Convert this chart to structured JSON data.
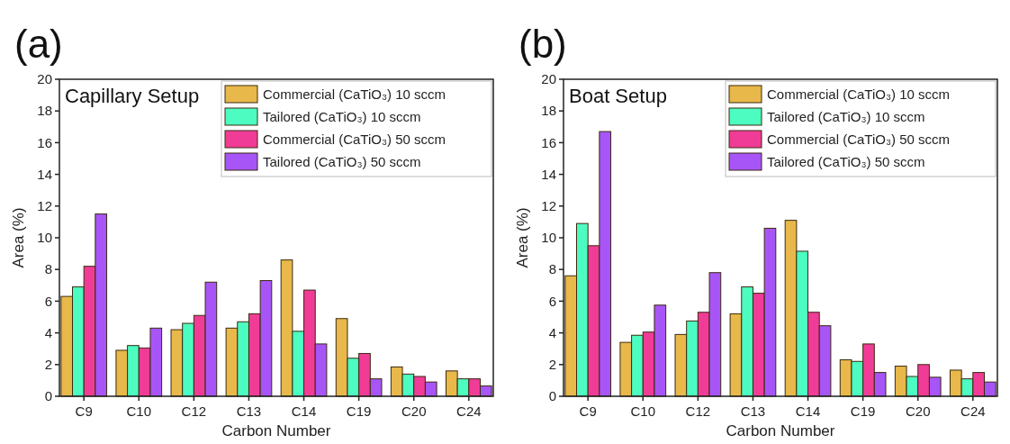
{
  "chart_data": [
    {
      "type": "bar",
      "title": "(a)",
      "subtitle": "Capillary Setup",
      "xlabel": "Carbon Number",
      "ylabel": "Area (%)",
      "categories": [
        "C9",
        "C10",
        "C12",
        "C13",
        "C14",
        "C19",
        "C20",
        "C24"
      ],
      "series": [
        {
          "name": "Commercial (CaTiO₃) 10 sccm",
          "color": "#e8b84a",
          "values": [
            6.3,
            2.9,
            4.2,
            4.3,
            8.6,
            4.9,
            1.85,
            1.6
          ]
        },
        {
          "name": "Tailored (CaTiO₃) 10 sccm",
          "color": "#4dfcc0",
          "values": [
            6.9,
            3.2,
            4.6,
            4.7,
            4.1,
            2.4,
            1.4,
            1.1
          ]
        },
        {
          "name": "Commercial (CaTiO₃) 50 sccm",
          "color": "#f03c96",
          "values": [
            8.2,
            3.05,
            5.1,
            5.2,
            6.7,
            2.7,
            1.25,
            1.1
          ]
        },
        {
          "name": "Tailored (CaTiO₃) 50 sccm",
          "color": "#a855f7",
          "values": [
            11.5,
            4.3,
            7.2,
            7.3,
            3.3,
            1.1,
            0.9,
            0.65
          ]
        }
      ],
      "ylim": [
        0,
        20
      ],
      "yticks": [
        0,
        2,
        4,
        6,
        8,
        10,
        12,
        14,
        16,
        18,
        20
      ],
      "grid": false,
      "legend": "top right"
    },
    {
      "type": "bar",
      "title": "(b)",
      "subtitle": "Boat Setup",
      "xlabel": "Carbon Number",
      "ylabel": "Area (%)",
      "categories": [
        "C9",
        "C10",
        "C12",
        "C13",
        "C14",
        "C19",
        "C20",
        "C24"
      ],
      "series": [
        {
          "name": "Commercial (CaTiO₃) 10 sccm",
          "color": "#e8b84a",
          "values": [
            7.6,
            3.4,
            3.9,
            5.2,
            11.1,
            2.3,
            1.9,
            1.65
          ]
        },
        {
          "name": "Tailored (CaTiO₃) 10 sccm",
          "color": "#4dfcc0",
          "values": [
            10.9,
            3.85,
            4.75,
            6.9,
            9.15,
            2.2,
            1.25,
            1.1
          ]
        },
        {
          "name": "Commercial (CaTiO₃) 50 sccm",
          "color": "#f03c96",
          "values": [
            9.5,
            4.05,
            5.3,
            6.5,
            5.3,
            3.3,
            2.0,
            1.5
          ]
        },
        {
          "name": "Tailored (CaTiO₃) 50 sccm",
          "color": "#a855f7",
          "values": [
            16.7,
            5.75,
            7.8,
            10.6,
            4.45,
            1.5,
            1.2,
            0.9
          ]
        }
      ],
      "ylim": [
        0,
        20
      ],
      "yticks": [
        0,
        2,
        4,
        6,
        8,
        10,
        12,
        14,
        16,
        18,
        20
      ],
      "grid": false,
      "legend": "top right"
    }
  ]
}
